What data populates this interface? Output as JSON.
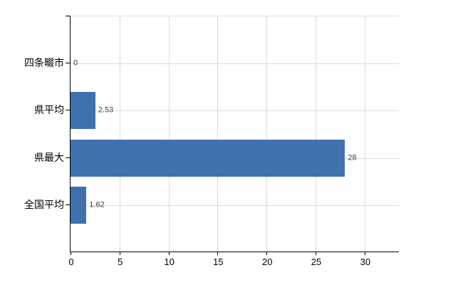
{
  "chart_data": {
    "type": "bar",
    "orientation": "horizontal",
    "title": "",
    "xlabel": "",
    "ylabel": "",
    "categories": [
      "四条畷市",
      "県平均",
      "県最大",
      "全国平均"
    ],
    "values": [
      0,
      2.53,
      28,
      1.62
    ],
    "value_labels": [
      "0",
      "2.53",
      "28",
      "1.62"
    ],
    "xlim": [
      0,
      33.5
    ],
    "xticks": [
      0,
      5,
      10,
      15,
      20,
      25,
      30
    ],
    "xtick_labels": [
      "0",
      "5",
      "10",
      "15",
      "20",
      "25",
      "30"
    ],
    "grid": true,
    "legend": false,
    "colors": {
      "bar": "#4170ae",
      "grid": "#d9ddd9",
      "axis": "#000000",
      "value_label": "#404040",
      "tick_label": "#000000",
      "background": "#ffffff"
    }
  }
}
